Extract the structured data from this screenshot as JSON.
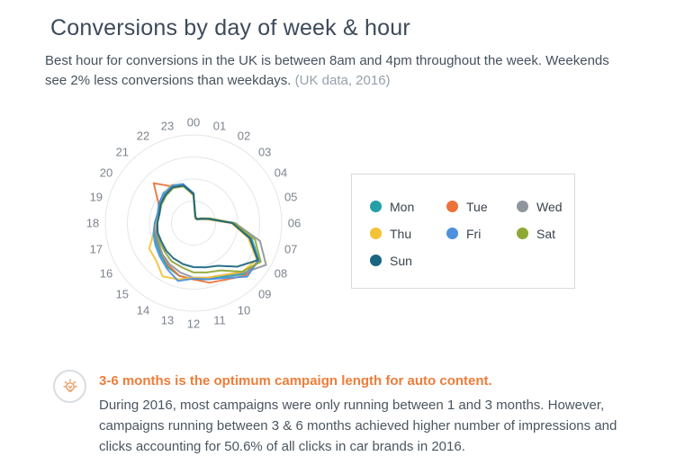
{
  "header": {
    "title": "Conversions by day of week & hour",
    "subtitle": "Best hour for conversions in the UK is between 8am and 4pm throughout the week. Weekends see 2% less conversions than weekdays.",
    "subtitle_note": "(UK data, 2016)"
  },
  "chart_data": {
    "type": "radar",
    "title": "Conversions by day of week & hour",
    "categories": [
      "00",
      "01",
      "02",
      "03",
      "04",
      "05",
      "06",
      "07",
      "08",
      "09",
      "10",
      "11",
      "12",
      "13",
      "14",
      "15",
      "16",
      "17",
      "18",
      "19",
      "20",
      "21",
      "22",
      "23"
    ],
    "series": [
      {
        "name": "Mon",
        "color": "#229fa7",
        "values": [
          33,
          8,
          6,
          6,
          10,
          18,
          45,
          68,
          86,
          82,
          70,
          66,
          64,
          62,
          58,
          52,
          48,
          46,
          44,
          42,
          45,
          48,
          48,
          45
        ]
      },
      {
        "name": "Tue",
        "color": "#ed713b",
        "values": [
          32,
          7,
          6,
          6,
          9,
          17,
          44,
          66,
          85,
          84,
          74,
          70,
          64,
          62,
          56,
          50,
          46,
          44,
          42,
          40,
          46,
          64,
          48,
          44
        ]
      },
      {
        "name": "Wed",
        "color": "#8e959d",
        "values": [
          34,
          8,
          6,
          7,
          10,
          19,
          47,
          78,
          95,
          80,
          68,
          64,
          62,
          58,
          54,
          50,
          46,
          44,
          43,
          41,
          44,
          46,
          49,
          45
        ]
      },
      {
        "name": "Thu",
        "color": "#f3c237",
        "values": [
          31,
          7,
          5,
          6,
          9,
          16,
          43,
          64,
          83,
          78,
          68,
          64,
          62,
          66,
          70,
          60,
          58,
          47,
          43,
          40,
          43,
          47,
          50,
          44
        ]
      },
      {
        "name": "Fri",
        "color": "#4d90dd",
        "values": [
          34,
          8,
          6,
          6,
          10,
          18,
          45,
          67,
          85,
          86,
          72,
          66,
          63,
          68,
          60,
          54,
          50,
          47,
          44,
          42,
          45,
          47,
          49,
          46
        ]
      },
      {
        "name": "Sat",
        "color": "#8fa834",
        "values": [
          32,
          8,
          6,
          7,
          11,
          20,
          46,
          72,
          88,
          78,
          62,
          58,
          56,
          52,
          50,
          46,
          44,
          42,
          41,
          40,
          42,
          44,
          46,
          43
        ]
      },
      {
        "name": "Sun",
        "color": "#1a6580",
        "values": [
          33,
          8,
          6,
          6,
          10,
          18,
          44,
          66,
          84,
          70,
          56,
          52,
          50,
          48,
          46,
          44,
          42,
          42,
          41,
          40,
          43,
          45,
          47,
          44
        ]
      }
    ],
    "value_axis": {
      "min": 0,
      "max": 100,
      "rings": [
        25,
        50,
        75,
        100
      ],
      "tick_labels_visible": false
    },
    "grid": true,
    "grid_color": "#e3e6e9",
    "category_label_color": "#7d848d",
    "legend_position": "right",
    "legend_labels": [
      "Mon",
      "Tue",
      "Wed",
      "Thu",
      "Fri",
      "Sat",
      "Sun"
    ]
  },
  "callout": {
    "icon": "lightbulb-icon",
    "accent_color": "#ed7d3a",
    "heading": "3-6 months is the optimum campaign length for auto content.",
    "body": "During 2016, most campaigns were only running between 1 and 3 months. However, campaigns running between 3 & 6 months achieved higher number of impressions and clicks accounting for 50.6% of all clicks in car brands in 2016."
  }
}
